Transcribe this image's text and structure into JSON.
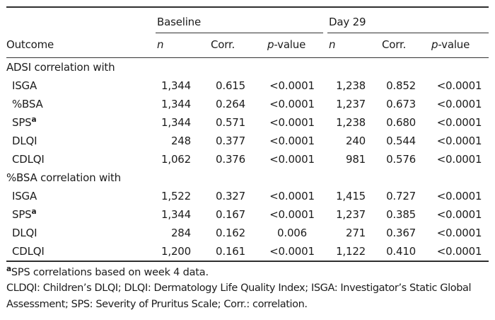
{
  "table": {
    "groups": [
      {
        "label": "Baseline"
      },
      {
        "label": "Day 29"
      }
    ],
    "columns": {
      "outcome": "Outcome",
      "n": "n",
      "corr": "Corr.",
      "p_italic": "p",
      "p_rest": "-value"
    },
    "sections": [
      {
        "header": "ADSI correlation with",
        "rows": [
          {
            "outcome": "ISGA",
            "sup": "",
            "b_n": "1,344",
            "b_corr": "0.615",
            "b_p": "<0.0001",
            "d_n": "1,238",
            "d_corr": "0.852",
            "d_p": "<0.0001"
          },
          {
            "outcome": "%BSA",
            "sup": "",
            "b_n": "1,344",
            "b_corr": "0.264",
            "b_p": "<0.0001",
            "d_n": "1,237",
            "d_corr": "0.673",
            "d_p": "<0.0001"
          },
          {
            "outcome": "SPS",
            "sup": "a",
            "b_n": "1,344",
            "b_corr": "0.571",
            "b_p": "<0.0001",
            "d_n": "1,238",
            "d_corr": "0.680",
            "d_p": "<0.0001"
          },
          {
            "outcome": "DLQI",
            "sup": "",
            "b_n": "248",
            "b_corr": "0.377",
            "b_p": "<0.0001",
            "d_n": "240",
            "d_corr": "0.544",
            "d_p": "<0.0001"
          },
          {
            "outcome": "CDLQI",
            "sup": "",
            "b_n": "1,062",
            "b_corr": "0.376",
            "b_p": "<0.0001",
            "d_n": "981",
            "d_corr": "0.576",
            "d_p": "<0.0001"
          }
        ]
      },
      {
        "header": "%BSA correlation with",
        "rows": [
          {
            "outcome": "ISGA",
            "sup": "",
            "b_n": "1,522",
            "b_corr": "0.327",
            "b_p": "<0.0001",
            "d_n": "1,415",
            "d_corr": "0.727",
            "d_p": "<0.0001"
          },
          {
            "outcome": "SPS",
            "sup": "a",
            "b_n": "1,344",
            "b_corr": "0.167",
            "b_p": "<0.0001",
            "d_n": "1,237",
            "d_corr": "0.385",
            "d_p": "<0.0001"
          },
          {
            "outcome": "DLQI",
            "sup": "",
            "b_n": "284",
            "b_corr": "0.162",
            "b_p": "0.006",
            "d_n": "271",
            "d_corr": "0.367",
            "d_p": "<0.0001"
          },
          {
            "outcome": "CDLQI",
            "sup": "",
            "b_n": "1,200",
            "b_corr": "0.161",
            "b_p": "<0.0001",
            "d_n": "1,122",
            "d_corr": "0.410",
            "d_p": "<0.0001"
          }
        ]
      }
    ],
    "footnotes": {
      "sup": "a",
      "note1": "SPS correlations based on week 4 data.",
      "note2": "CLDQI: Children’s DLQI; DLQI: Dermatology Life Quality Index; ISGA: Investigator’s Static Global Assessment; SPS: Severity of Pruritus Scale; Corr.: correlation."
    },
    "colors": {
      "text": "#1c1c1c",
      "rule": "#2e2e2e",
      "background": "#ffffff"
    }
  }
}
